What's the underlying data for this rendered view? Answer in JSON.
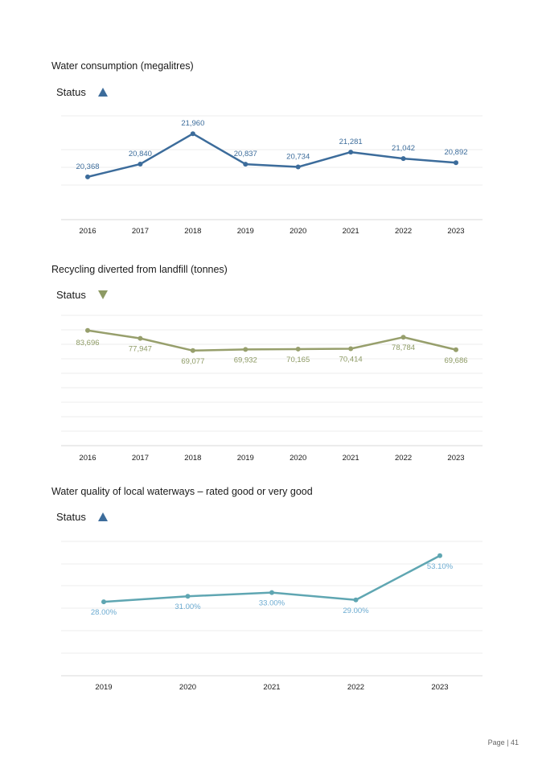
{
  "charts": [
    {
      "title": "Water consumption (megalitres)",
      "status_label": "Status",
      "status_direction": "up",
      "status_color": "#3c6c9b",
      "line_color": "#3c6c9b",
      "label_color": "#3c6c9b",
      "categories": [
        "2016",
        "2017",
        "2018",
        "2019",
        "2020",
        "2021",
        "2022",
        "2023"
      ],
      "values": [
        20368,
        20840,
        21960,
        20837,
        20734,
        21281,
        21042,
        20892
      ],
      "value_labels": [
        "20,368",
        "20,840",
        "21,960",
        "20,837",
        "20,734",
        "21,281",
        "21,042",
        "20,892"
      ],
      "label_position": "above",
      "ylim": [
        19000,
        22500
      ]
    },
    {
      "title": "Recycling diverted from landfill (tonnes)",
      "status_label": "Status",
      "status_direction": "down",
      "status_color": "#8d9a64",
      "line_color": "#979f6c",
      "label_color": "#8d9a64",
      "categories": [
        "2016",
        "2017",
        "2018",
        "2019",
        "2020",
        "2021",
        "2022",
        "2023"
      ],
      "values": [
        83696,
        77947,
        69077,
        69932,
        70165,
        70414,
        78784,
        69686
      ],
      "value_labels": [
        "83,696",
        "77,947",
        "69,077",
        "69,932",
        "70,165",
        "70,414",
        "78,784",
        "69,686"
      ],
      "label_position": "below",
      "ylim": [
        0,
        90000
      ]
    },
    {
      "title": "Water quality of local waterways – rated good or very good",
      "status_label": "Status",
      "status_direction": "up",
      "status_color": "#3c6c9b",
      "line_color": "#5fa6b2",
      "label_color": "#6aaad0",
      "categories": [
        "2019",
        "2020",
        "2021",
        "2022",
        "2023"
      ],
      "values": [
        28.0,
        31.0,
        33.0,
        29.0,
        53.1
      ],
      "value_labels": [
        "28.00%",
        "31.00%",
        "33.00%",
        "29.00%",
        "53.10%"
      ],
      "label_position": "below",
      "ylim": [
        0,
        60
      ]
    }
  ],
  "chart_data": [
    {
      "type": "line",
      "title": "Water consumption (megalitres)",
      "categories": [
        "2016",
        "2017",
        "2018",
        "2019",
        "2020",
        "2021",
        "2022",
        "2023"
      ],
      "series": [
        {
          "values": [
            20368,
            20840,
            21960,
            20837,
            20734,
            21281,
            21042,
            20892
          ]
        }
      ]
    },
    {
      "type": "line",
      "title": "Recycling diverted from landfill (tonnes)",
      "categories": [
        "2016",
        "2017",
        "2018",
        "2019",
        "2020",
        "2021",
        "2022",
        "2023"
      ],
      "series": [
        {
          "values": [
            83696,
            77947,
            69077,
            69932,
            70165,
            70414,
            78784,
            69686
          ]
        }
      ]
    },
    {
      "type": "line",
      "title": "Water quality of local waterways – rated good or very good",
      "categories": [
        "2019",
        "2020",
        "2021",
        "2022",
        "2023"
      ],
      "series": [
        {
          "values": [
            28.0,
            31.0,
            33.0,
            29.0,
            53.1
          ]
        }
      ]
    }
  ],
  "footer": {
    "page_label": "Page | 41"
  }
}
